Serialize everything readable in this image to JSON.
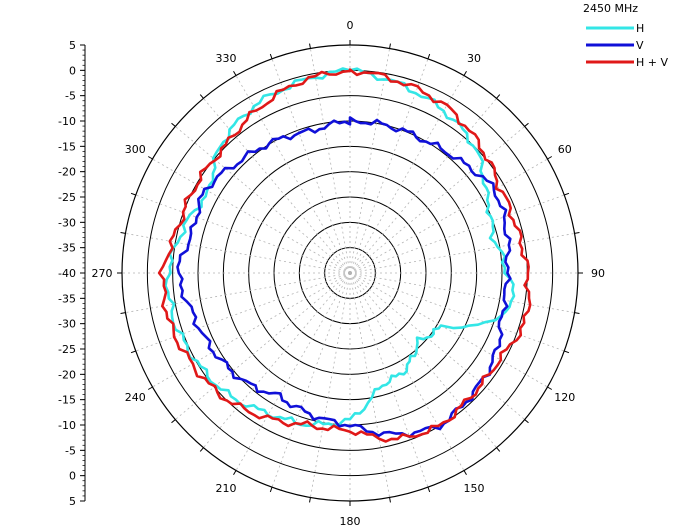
{
  "chart_data": {
    "type": "polar-line",
    "title": "2450 MHz",
    "angle_labels": [
      "0",
      "30",
      "60",
      "90",
      "120",
      "150",
      "180",
      "210",
      "240",
      "270",
      "300",
      "330"
    ],
    "radial_range_db": [
      -40,
      5
    ],
    "radial_ring_step_db": 5,
    "radial_scale_labels": [
      "5",
      "0",
      "-5",
      "-10",
      "-15",
      "-20",
      "-25",
      "-30",
      "-35",
      "-40",
      "-35",
      "-30",
      "-25",
      "-20",
      "-15",
      "-10",
      "-5",
      "0",
      "5"
    ],
    "radial_scale_values": [
      5,
      0,
      -5,
      -10,
      -15,
      -20,
      -25,
      -30,
      -35,
      -40,
      -35,
      -30,
      -25,
      -20,
      -15,
      -10,
      -5,
      0,
      5
    ],
    "legend": {
      "placement": "top-right"
    },
    "series": [
      {
        "name": "H",
        "color": "#33e6e6",
        "points": [
          [
            0,
            0
          ],
          [
            15,
            -1.5
          ],
          [
            30,
            -3
          ],
          [
            45,
            -5
          ],
          [
            60,
            -9
          ],
          [
            75,
            -11
          ],
          [
            90,
            -9
          ],
          [
            100,
            -7
          ],
          [
            110,
            -11
          ],
          [
            120,
            -19
          ],
          [
            135,
            -21
          ],
          [
            150,
            -18
          ],
          [
            165,
            -17
          ],
          [
            180,
            -11
          ],
          [
            195,
            -9
          ],
          [
            210,
            -8
          ],
          [
            225,
            -6
          ],
          [
            240,
            -5
          ],
          [
            255,
            -4
          ],
          [
            270,
            -4
          ],
          [
            285,
            -6
          ],
          [
            300,
            -8
          ],
          [
            315,
            -4
          ],
          [
            330,
            -2
          ],
          [
            345,
            -1
          ],
          [
            360,
            0
          ]
        ]
      },
      {
        "name": "V",
        "color": "#1010d8",
        "points": [
          [
            0,
            -10
          ],
          [
            15,
            -10
          ],
          [
            30,
            -10
          ],
          [
            45,
            -9
          ],
          [
            60,
            -7
          ],
          [
            75,
            -8
          ],
          [
            90,
            -9
          ],
          [
            105,
            -9
          ],
          [
            120,
            -7
          ],
          [
            135,
            -6
          ],
          [
            150,
            -5
          ],
          [
            165,
            -7
          ],
          [
            180,
            -10
          ],
          [
            195,
            -11
          ],
          [
            210,
            -12
          ],
          [
            225,
            -10
          ],
          [
            240,
            -9
          ],
          [
            255,
            -8
          ],
          [
            270,
            -6
          ],
          [
            285,
            -8
          ],
          [
            300,
            -7
          ],
          [
            315,
            -9
          ],
          [
            330,
            -10
          ],
          [
            345,
            -11
          ],
          [
            360,
            -10
          ]
        ]
      },
      {
        "name": "H + V",
        "color": "#e01818",
        "points": [
          [
            0,
            0
          ],
          [
            15,
            -1
          ],
          [
            30,
            -2
          ],
          [
            45,
            -4
          ],
          [
            60,
            -6
          ],
          [
            75,
            -6
          ],
          [
            90,
            -5
          ],
          [
            105,
            -4
          ],
          [
            120,
            -6
          ],
          [
            135,
            -6
          ],
          [
            150,
            -5
          ],
          [
            165,
            -6
          ],
          [
            180,
            -9
          ],
          [
            195,
            -9
          ],
          [
            210,
            -7
          ],
          [
            225,
            -5
          ],
          [
            240,
            -4
          ],
          [
            255,
            -3
          ],
          [
            270,
            -3
          ],
          [
            285,
            -5
          ],
          [
            300,
            -5
          ],
          [
            315,
            -5
          ],
          [
            330,
            -3
          ],
          [
            345,
            -1
          ],
          [
            360,
            0
          ]
        ]
      }
    ]
  }
}
